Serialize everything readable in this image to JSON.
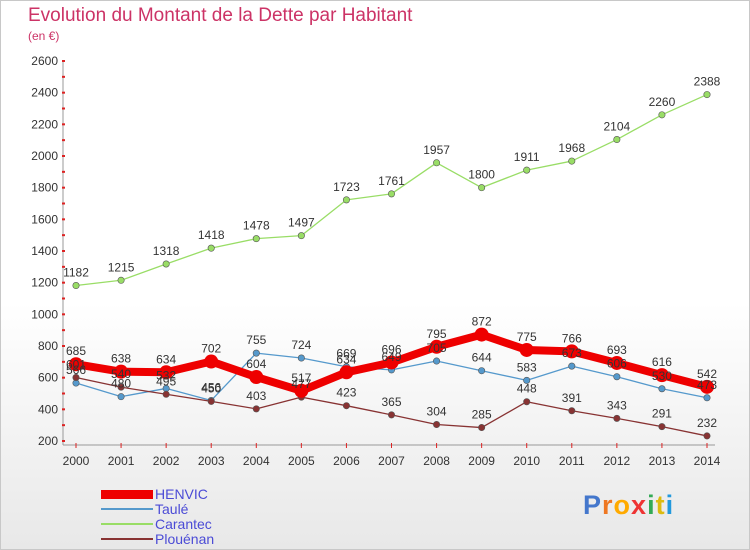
{
  "title": "Evolution du Montant de la Dette par Habitant",
  "subtitle": "(en €)",
  "logo": {
    "text": "Proxiti",
    "colors": [
      "#4477cc",
      "#ee7722",
      "#ffaa00",
      "#ee3333",
      "#33aa55",
      "#ddbb11",
      "#2299dd"
    ]
  },
  "chart_data": {
    "type": "line",
    "x": [
      2000,
      2001,
      2002,
      2003,
      2004,
      2005,
      2006,
      2007,
      2008,
      2009,
      2010,
      2011,
      2012,
      2013,
      2014
    ],
    "ylim": [
      200,
      2600
    ],
    "yticks": [
      200,
      400,
      600,
      800,
      1000,
      1200,
      1400,
      1600,
      1800,
      2000,
      2200,
      2400,
      2600
    ],
    "grid": false,
    "legend_position": "bottom-left",
    "series": [
      {
        "name": "Carantec",
        "color": "#99dd66",
        "values": [
          1182,
          1215,
          1318,
          1418,
          1478,
          1497,
          1723,
          1761,
          1957,
          1800,
          1911,
          1968,
          2104,
          2260,
          2388
        ],
        "labels": [
          "1182",
          "1215",
          "1318",
          "1418",
          "1478",
          "1497",
          "1723",
          "1761",
          "1957",
          "1800",
          "1911",
          "1968",
          "2104",
          "2260",
          "2388"
        ]
      },
      {
        "name": "Taulé",
        "color": "#5599cc",
        "values": [
          566,
          480,
          532,
          456,
          755,
          724,
          669,
          649,
          705,
          644,
          583,
          673,
          606,
          530,
          473
        ],
        "labels": [
          "566",
          "480",
          "532",
          "456",
          "755",
          "724",
          "669",
          "649",
          "705",
          "644",
          "583",
          "673",
          "606",
          "530",
          "473"
        ]
      },
      {
        "name": "Plouénan",
        "color": "#883333",
        "values": [
          601,
          540,
          495,
          450,
          403,
          477,
          423,
          365,
          304,
          285,
          448,
          391,
          343,
          291,
          232
        ],
        "labels": [
          "601",
          "540",
          "495",
          "450",
          "403",
          "477",
          "423",
          "365",
          "304",
          "285",
          "448",
          "391",
          "343",
          "291",
          "232"
        ]
      },
      {
        "name": "HENVIC",
        "color": "#ee0000",
        "values": [
          685,
          638,
          634,
          702,
          604,
          517,
          634,
          696,
          795,
          872,
          775,
          766,
          693,
          616,
          542
        ],
        "labels": [
          "685",
          "638",
          "634",
          "702",
          "604",
          "517",
          "634",
          "696",
          "795",
          "872",
          "775",
          "766",
          "693",
          "616",
          "542"
        ]
      }
    ],
    "legend_order": [
      "HENVIC",
      "Taulé",
      "Carantec",
      "Plouénan"
    ]
  }
}
